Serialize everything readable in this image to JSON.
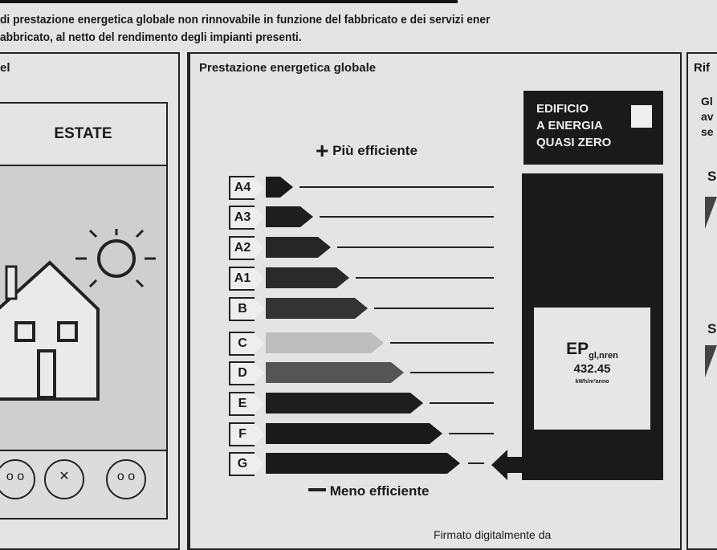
{
  "intro": {
    "line1": "di prestazione energetica globale non rinnovabile in funzione del fabbricato e dei servizi ener",
    "line2": "abbricato, al netto del rendimento degli impianti presenti."
  },
  "left_panel": {
    "title": "el",
    "season": "ESTATE"
  },
  "middle_panel": {
    "title": "Prestazione energetica globale",
    "more_efficient": "Più efficiente",
    "less_efficient": "Meno efficiente",
    "classes": [
      "A4",
      "A3",
      "A2",
      "A1",
      "B",
      "C",
      "D",
      "E",
      "F",
      "G"
    ],
    "current_class": "G",
    "nzeb_label": [
      "EDIFICIO",
      "A ENERGIA",
      "QUASI ZERO"
    ],
    "ep_label": "EP",
    "ep_sub": "gl,nren",
    "ep_value": "432.45",
    "ep_unit": "kWh/m²anno"
  },
  "right_panel": {
    "title": "Rif",
    "text": [
      "Gl",
      "av",
      "se"
    ],
    "s1": "S",
    "s2": "S"
  },
  "footer": {
    "signature": "Firmato digitalmente da"
  }
}
